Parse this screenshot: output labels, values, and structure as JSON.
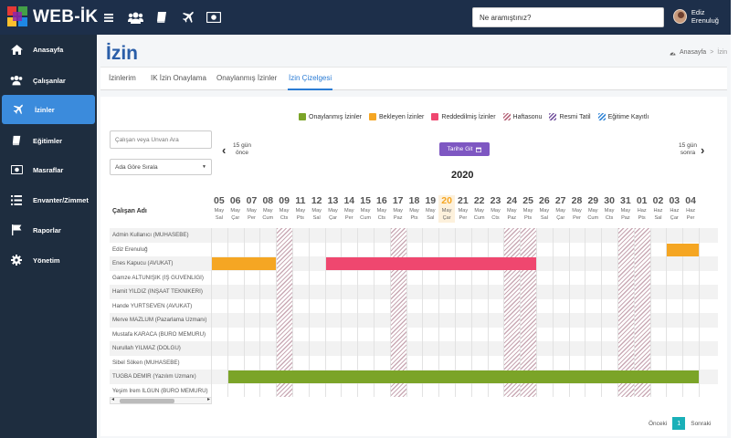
{
  "app": {
    "brand": "WEB-İK"
  },
  "search": {
    "placeholder": "Ne aramıştınız?"
  },
  "user": {
    "name": "Ediz Erenuluğ"
  },
  "sidebar": {
    "items": [
      {
        "label": "Anasayfa",
        "icon": "home-icon"
      },
      {
        "label": "Çalışanlar",
        "icon": "users-icon"
      },
      {
        "label": "İzinler",
        "icon": "plane-icon",
        "active": true
      },
      {
        "label": "Eğitimler",
        "icon": "book-icon"
      },
      {
        "label": "Masraflar",
        "icon": "money-icon"
      },
      {
        "label": "Envanter/Zimmet",
        "icon": "list-icon"
      },
      {
        "label": "Raporlar",
        "icon": "flag-icon"
      },
      {
        "label": "Yönetim",
        "icon": "gear-icon"
      }
    ]
  },
  "page": {
    "title": "İzin"
  },
  "breadcrumb": {
    "home": "Anasayfa",
    "sep": ">",
    "current": "İzin"
  },
  "tabs": [
    {
      "label": "İzinlerim"
    },
    {
      "label": "IK İzin Onaylama"
    },
    {
      "label": "Onaylanmış İzinler"
    },
    {
      "label": "İzin Çizelgesi",
      "active": true
    }
  ],
  "legend": [
    {
      "label": "Onaylanmış İzinler",
      "color": "#7ba428"
    },
    {
      "label": "Bekleyen İzinler",
      "color": "#f5a623"
    },
    {
      "label": "Reddedilmiş İzinler",
      "color": "#ef476f"
    },
    {
      "label": "Haftasonu",
      "pattern": "stripe"
    },
    {
      "label": "Resmi Tatil",
      "pattern": "stripe2"
    },
    {
      "label": "Eğitime Kayıtlı",
      "pattern": "stripe3"
    }
  ],
  "filters": {
    "employee_search_placeholder": "Çalışan veya Ünvan Ara",
    "sort_value": "Ada Göre Sırala"
  },
  "nav": {
    "prev_label": "15 gün önce",
    "next_label": "15 gün sonra",
    "goto_label": "Tarihe Git"
  },
  "year": "2020",
  "grid_header": "Çalışan Adı",
  "days": [
    {
      "d": "05",
      "m": "May",
      "w": "Sal"
    },
    {
      "d": "06",
      "m": "May",
      "w": "Çar"
    },
    {
      "d": "07",
      "m": "May",
      "w": "Per"
    },
    {
      "d": "08",
      "m": "May",
      "w": "Cum"
    },
    {
      "d": "09",
      "m": "May",
      "w": "Cts",
      "weekend": true
    },
    {
      "d": "11",
      "m": "May",
      "w": "Pts"
    },
    {
      "d": "12",
      "m": "May",
      "w": "Sal"
    },
    {
      "d": "13",
      "m": "May",
      "w": "Çar"
    },
    {
      "d": "14",
      "m": "May",
      "w": "Per"
    },
    {
      "d": "15",
      "m": "May",
      "w": "Cum"
    },
    {
      "d": "16",
      "m": "May",
      "w": "Cts"
    },
    {
      "d": "17",
      "m": "May",
      "w": "Paz",
      "weekend": true
    },
    {
      "d": "18",
      "m": "May",
      "w": "Pts"
    },
    {
      "d": "19",
      "m": "May",
      "w": "Sal"
    },
    {
      "d": "20",
      "m": "May",
      "w": "Çar",
      "today": true
    },
    {
      "d": "21",
      "m": "May",
      "w": "Per"
    },
    {
      "d": "22",
      "m": "May",
      "w": "Cum"
    },
    {
      "d": "23",
      "m": "May",
      "w": "Cts"
    },
    {
      "d": "24",
      "m": "May",
      "w": "Paz",
      "weekend": true
    },
    {
      "d": "25",
      "m": "May",
      "w": "Pts",
      "weekend": true
    },
    {
      "d": "26",
      "m": "May",
      "w": "Sal"
    },
    {
      "d": "27",
      "m": "May",
      "w": "Çar"
    },
    {
      "d": "28",
      "m": "May",
      "w": "Per"
    },
    {
      "d": "29",
      "m": "May",
      "w": "Cum"
    },
    {
      "d": "30",
      "m": "May",
      "w": "Cts"
    },
    {
      "d": "31",
      "m": "May",
      "w": "Paz",
      "weekend": true
    },
    {
      "d": "01",
      "m": "Haz",
      "w": "Pts",
      "weekend": true
    },
    {
      "d": "02",
      "m": "Haz",
      "w": "Sal"
    },
    {
      "d": "03",
      "m": "Haz",
      "w": "Çar"
    },
    {
      "d": "04",
      "m": "Haz",
      "w": "Per"
    }
  ],
  "employees": [
    {
      "name": "Admin Kullanıcı (MUHASEBE)"
    },
    {
      "name": "Ediz Erenuluğ"
    },
    {
      "name": "Enes Kapucu (AVUKAT)"
    },
    {
      "name": "Gamze ALTUNIŞIK (İŞ GÜVENLİĞİ)"
    },
    {
      "name": "Hamit YILDIZ (İNŞAAT TEKNİKERİ)"
    },
    {
      "name": "Hande YURTSEVEN (AVUKAT)"
    },
    {
      "name": "Merve MAZLUM (Pazarlama Uzmanı)"
    },
    {
      "name": "Mustafa KARACA (BÜRO MEMURU)"
    },
    {
      "name": "Nurullah YILMAZ (DOLGU)"
    },
    {
      "name": "Sibel Söken (MUHASEBE)"
    },
    {
      "name": "TUĞBA DEMİR (Yazılım Uzmanı)"
    },
    {
      "name": "Yeşim İrem İLGÜN (BÜRO MEMURU)"
    }
  ],
  "leaves": [
    {
      "row": 1,
      "start": 28,
      "end": 29,
      "status": "pending",
      "color": "#f5a623"
    },
    {
      "row": 2,
      "start": 0,
      "end": 3,
      "status": "pending",
      "color": "#f5a623"
    },
    {
      "row": 2,
      "start": 7,
      "end": 19,
      "status": "rejected",
      "color": "#ef476f"
    },
    {
      "row": 10,
      "start": 1,
      "end": 29,
      "status": "approved",
      "color": "#7ba428"
    }
  ],
  "pager": {
    "prev": "Önceki",
    "current": "1",
    "next": "Sonraki"
  }
}
